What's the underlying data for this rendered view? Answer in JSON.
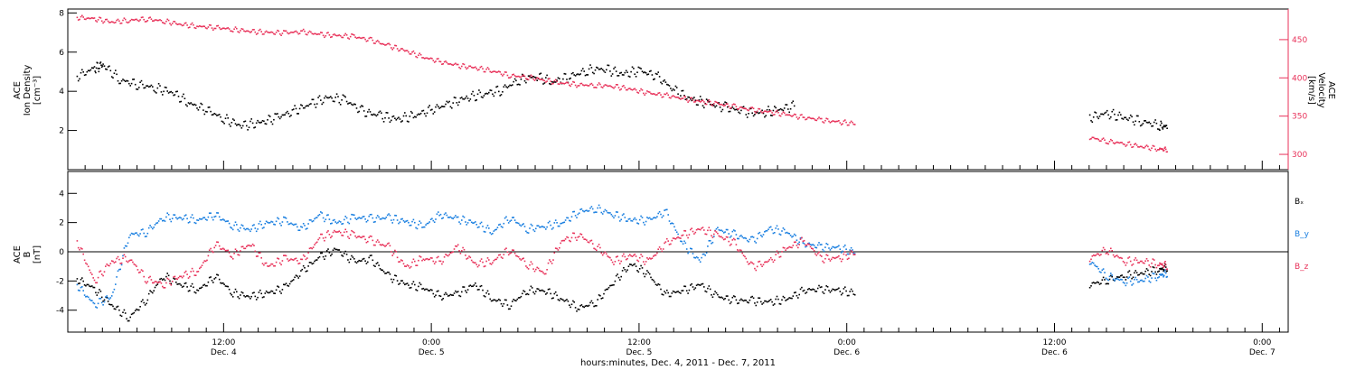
{
  "chart_data": [
    {
      "type": "scatter",
      "panel": "top",
      "ylabel_left": [
        "ACE",
        "Ion Density",
        "[cm⁻³]"
      ],
      "ylabel_right": [
        "ACE",
        "Velocity",
        "[km/s]"
      ],
      "ylim_left": [
        0,
        8.2
      ],
      "ylim_right": [
        280,
        490
      ],
      "yticks_left": [
        "2",
        "4",
        "6",
        "8"
      ],
      "yticks_right": [
        "300",
        "350",
        "400",
        "450"
      ],
      "colors": {
        "density": "#000000",
        "velocity": "#e8325a"
      },
      "series": [
        {
          "axis": "left",
          "points": [
            [
              3.5,
              4.8
            ],
            [
              4.5,
              5.2
            ],
            [
              5.0,
              5.4
            ],
            [
              6,
              4.6
            ],
            [
              7,
              4.4
            ],
            [
              8,
              4.2
            ],
            [
              9,
              4.0
            ],
            [
              10,
              3.4
            ],
            [
              11,
              3.1
            ],
            [
              12,
              2.6
            ],
            [
              13,
              2.3
            ],
            [
              14,
              2.4
            ],
            [
              15,
              2.7
            ],
            [
              16,
              3.0
            ],
            [
              17,
              3.4
            ],
            [
              18,
              3.7
            ],
            [
              19,
              3.6
            ],
            [
              20,
              3.0
            ],
            [
              21,
              2.8
            ],
            [
              22,
              2.6
            ],
            [
              23,
              2.8
            ],
            [
              24,
              3.1
            ],
            [
              25,
              3.4
            ],
            [
              26,
              3.7
            ],
            [
              27,
              3.9
            ],
            [
              28,
              4.1
            ],
            [
              29,
              4.6
            ],
            [
              30,
              4.8
            ],
            [
              31,
              4.5
            ],
            [
              32,
              4.8
            ],
            [
              33,
              5.1
            ],
            [
              34,
              5.2
            ],
            [
              35,
              4.9
            ],
            [
              36,
              5.1
            ],
            [
              37,
              4.8
            ],
            [
              38,
              4.1
            ],
            [
              39,
              3.6
            ],
            [
              40,
              3.4
            ],
            [
              41,
              3.2
            ],
            [
              42,
              3.0
            ],
            [
              43,
              2.9
            ],
            [
              44,
              3.1
            ],
            [
              45,
              3.3
            ],
            [
              62,
              2.7
            ],
            [
              63,
              2.9
            ],
            [
              64,
              2.7
            ],
            [
              65,
              2.5
            ],
            [
              66,
              2.3
            ],
            [
              66.5,
              2.2
            ]
          ]
        },
        {
          "axis": "right",
          "points": [
            [
              3.5,
              480
            ],
            [
              4.5,
              478
            ],
            [
              5.5,
              474
            ],
            [
              6.5,
              476
            ],
            [
              7.5,
              478
            ],
            [
              8.5,
              475
            ],
            [
              9.5,
              471
            ],
            [
              10.5,
              468
            ],
            [
              11.5,
              467
            ],
            [
              12.5,
              464
            ],
            [
              13.5,
              462
            ],
            [
              14.5,
              460
            ],
            [
              15.5,
              460
            ],
            [
              16.5,
              461
            ],
            [
              17.5,
              458
            ],
            [
              18.5,
              456
            ],
            [
              19.5,
              455
            ],
            [
              20.5,
              450
            ],
            [
              21.5,
              443
            ],
            [
              22.5,
              436
            ],
            [
              23.5,
              428
            ],
            [
              24.5,
              422
            ],
            [
              25.5,
              417
            ],
            [
              26.5,
              414
            ],
            [
              27.5,
              410
            ],
            [
              28.5,
              404
            ],
            [
              29.5,
              402
            ],
            [
              30.5,
              398
            ],
            [
              31.5,
              394
            ],
            [
              32.5,
              392
            ],
            [
              33.5,
              391
            ],
            [
              34.5,
              390
            ],
            [
              35.5,
              386
            ],
            [
              36.5,
              381
            ],
            [
              37.5,
              378
            ],
            [
              38.5,
              374
            ],
            [
              39.5,
              370
            ],
            [
              40.5,
              367
            ],
            [
              41.5,
              363
            ],
            [
              42.5,
              359
            ],
            [
              43.5,
              356
            ],
            [
              44.5,
              353
            ],
            [
              45.5,
              349
            ],
            [
              46.5,
              346
            ],
            [
              47.5,
              343
            ],
            [
              48.5,
              341
            ],
            [
              62,
              323
            ],
            [
              63,
              318
            ],
            [
              64,
              315
            ],
            [
              65,
              311
            ],
            [
              66,
              308
            ],
            [
              66.5,
              307
            ]
          ]
        }
      ]
    },
    {
      "type": "scatter",
      "panel": "bottom",
      "ylabel": [
        "ACE",
        "B",
        "[nT]"
      ],
      "ylim": [
        -5.5,
        5.5
      ],
      "yticks": [
        "-4",
        "-2",
        "0",
        "2",
        "4"
      ],
      "legend": [
        "Bₓ",
        "B_y",
        "B_z"
      ],
      "legend_placement": "right",
      "series": [
        {
          "name": "Bₓ",
          "color": "#000000",
          "points": [
            [
              3.5,
              -1.8
            ],
            [
              4.5,
              -2.5
            ],
            [
              5.5,
              -3.6
            ],
            [
              6.5,
              -4.5
            ],
            [
              7.5,
              -3.2
            ],
            [
              8.5,
              -1.6
            ],
            [
              9.5,
              -2.2
            ],
            [
              10.5,
              -2.6
            ],
            [
              11.5,
              -1.6
            ],
            [
              12.5,
              -2.8
            ],
            [
              13.5,
              -3.0
            ],
            [
              14.5,
              -2.8
            ],
            [
              15.5,
              -2.4
            ],
            [
              16.5,
              -1.3
            ],
            [
              17.5,
              -0.3
            ],
            [
              18.5,
              0.2
            ],
            [
              19.5,
              -0.6
            ],
            [
              20.5,
              -0.5
            ],
            [
              21.5,
              -1.6
            ],
            [
              22.5,
              -2.2
            ],
            [
              23.5,
              -2.4
            ],
            [
              24.5,
              -3.0
            ],
            [
              25.5,
              -2.8
            ],
            [
              26.5,
              -2.2
            ],
            [
              27.5,
              -3.2
            ],
            [
              28.5,
              -3.6
            ],
            [
              29.5,
              -2.6
            ],
            [
              30.5,
              -2.6
            ],
            [
              31.5,
              -3.2
            ],
            [
              32.5,
              -3.8
            ],
            [
              33.5,
              -3.4
            ],
            [
              34.5,
              -2.0
            ],
            [
              35.5,
              -0.8
            ],
            [
              36.5,
              -1.5
            ],
            [
              37.5,
              -2.9
            ],
            [
              38.5,
              -2.6
            ],
            [
              39.5,
              -2.2
            ],
            [
              40.5,
              -3.0
            ],
            [
              41.5,
              -3.3
            ],
            [
              42.5,
              -3.3
            ],
            [
              43.5,
              -3.4
            ],
            [
              44.5,
              -3.2
            ],
            [
              45.5,
              -2.6
            ],
            [
              46.5,
              -2.5
            ],
            [
              47.5,
              -2.6
            ],
            [
              48.5,
              -2.8
            ],
            [
              62,
              -2.2
            ],
            [
              63,
              -1.9
            ],
            [
              64,
              -1.6
            ],
            [
              65,
              -1.4
            ],
            [
              66,
              -1.2
            ],
            [
              66.5,
              -1.0
            ]
          ]
        },
        {
          "name": "B_y",
          "color": "#1a7fe0",
          "points": [
            [
              3.5,
              -2.2
            ],
            [
              4.5,
              -3.6
            ],
            [
              5.5,
              -3.0
            ],
            [
              6.5,
              1.2
            ],
            [
              7.5,
              1.4
            ],
            [
              8.5,
              2.4
            ],
            [
              9.5,
              2.4
            ],
            [
              10.5,
              2.2
            ],
            [
              11.5,
              2.6
            ],
            [
              12.5,
              1.8
            ],
            [
              13.5,
              1.6
            ],
            [
              14.5,
              2.0
            ],
            [
              15.5,
              2.2
            ],
            [
              16.5,
              1.6
            ],
            [
              17.5,
              2.6
            ],
            [
              18.5,
              2.0
            ],
            [
              19.5,
              2.4
            ],
            [
              20.5,
              2.3
            ],
            [
              21.5,
              2.4
            ],
            [
              22.5,
              2.1
            ],
            [
              23.5,
              1.8
            ],
            [
              24.5,
              2.6
            ],
            [
              25.5,
              2.3
            ],
            [
              26.5,
              2.0
            ],
            [
              27.5,
              1.4
            ],
            [
              28.5,
              2.4
            ],
            [
              29.5,
              1.6
            ],
            [
              30.5,
              1.8
            ],
            [
              31.5,
              2.0
            ],
            [
              32.5,
              2.8
            ],
            [
              33.5,
              3.0
            ],
            [
              34.5,
              2.6
            ],
            [
              35.5,
              2.2
            ],
            [
              36.5,
              2.2
            ],
            [
              37.5,
              2.8
            ],
            [
              38.5,
              0.6
            ],
            [
              39.5,
              -0.6
            ],
            [
              40.5,
              1.6
            ],
            [
              41.5,
              1.2
            ],
            [
              42.5,
              0.8
            ],
            [
              43.5,
              1.6
            ],
            [
              44.5,
              1.4
            ],
            [
              45.5,
              0.6
            ],
            [
              46.5,
              0.4
            ],
            [
              47.5,
              0.3
            ],
            [
              48.5,
              0.0
            ],
            [
              62,
              -0.6
            ],
            [
              63,
              -1.6
            ],
            [
              64,
              -2.0
            ],
            [
              65,
              -1.9
            ],
            [
              66,
              -1.6
            ],
            [
              66.5,
              -1.4
            ]
          ]
        },
        {
          "name": "B_z",
          "color": "#e8325a",
          "points": [
            [
              3.5,
              0.8
            ],
            [
              4.5,
              -2.0
            ],
            [
              5.5,
              -0.6
            ],
            [
              6.5,
              -0.4
            ],
            [
              7.5,
              -1.8
            ],
            [
              8.5,
              -2.2
            ],
            [
              9.5,
              -1.6
            ],
            [
              10.5,
              -1.3
            ],
            [
              11.5,
              0.6
            ],
            [
              12.5,
              -0.2
            ],
            [
              13.5,
              0.6
            ],
            [
              14.5,
              -1.0
            ],
            [
              15.5,
              -0.4
            ],
            [
              16.5,
              -0.6
            ],
            [
              17.5,
              1.0
            ],
            [
              18.5,
              1.4
            ],
            [
              19.5,
              1.2
            ],
            [
              20.5,
              0.8
            ],
            [
              21.5,
              0.4
            ],
            [
              22.5,
              -1.0
            ],
            [
              23.5,
              -0.4
            ],
            [
              24.5,
              -0.6
            ],
            [
              25.5,
              0.4
            ],
            [
              26.5,
              -0.8
            ],
            [
              27.5,
              -0.6
            ],
            [
              28.5,
              0.2
            ],
            [
              29.5,
              -0.8
            ],
            [
              30.5,
              -1.4
            ],
            [
              31.5,
              0.8
            ],
            [
              32.5,
              1.2
            ],
            [
              33.5,
              0.4
            ],
            [
              34.5,
              -0.6
            ],
            [
              35.5,
              -0.2
            ],
            [
              36.5,
              -0.6
            ],
            [
              37.5,
              0.6
            ],
            [
              38.5,
              1.2
            ],
            [
              39.5,
              1.6
            ],
            [
              40.5,
              1.2
            ],
            [
              41.5,
              0.6
            ],
            [
              42.5,
              -1.0
            ],
            [
              43.5,
              -0.6
            ],
            [
              44.5,
              0.3
            ],
            [
              45.5,
              0.8
            ],
            [
              46.5,
              -0.4
            ],
            [
              47.5,
              -0.4
            ],
            [
              48.5,
              0.0
            ],
            [
              62,
              -0.4
            ],
            [
              63,
              0.2
            ],
            [
              64,
              -0.6
            ],
            [
              65,
              -0.6
            ],
            [
              66,
              -0.8
            ],
            [
              66.5,
              -0.9
            ]
          ]
        }
      ]
    }
  ],
  "xaxis": {
    "xlabel": "hours:minutes, Dec.  4, 2011 - Dec.  7, 2011",
    "xlim_hours": [
      3,
      73.5
    ],
    "ticks": [
      {
        "x": 12,
        "time": "12:00",
        "day": "Dec. 4"
      },
      {
        "x": 24,
        "time": "0:00",
        "day": "Dec. 5"
      },
      {
        "x": 36,
        "time": "12:00",
        "day": "Dec. 5"
      },
      {
        "x": 48,
        "time": "0:00",
        "day": "Dec. 6"
      },
      {
        "x": 60,
        "time": "12:00",
        "day": "Dec. 6"
      },
      {
        "x": 72,
        "time": "0:00",
        "day": "Dec. 7"
      }
    ]
  }
}
